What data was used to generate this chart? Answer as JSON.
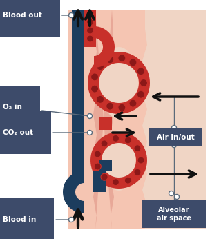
{
  "bg_outer": "#ffffff",
  "bg_alveolar": "#f5c5b2",
  "bg_air_space": "#f0d5c5",
  "wall_color": "#e8a898",
  "label_bg": "#3d4b6a",
  "label_fg": "#ffffff",
  "vessel_blue": "#1c3d5e",
  "rbc_bright": "#c8302a",
  "rbc_dark": "#8b1818",
  "connector_c": "#5a6a7a",
  "arrow_c": "#111111",
  "labels": {
    "blood_out": "Blood out",
    "blood_in": "Blood in",
    "o2_in": "O₂ in",
    "co2_out": "CO₂ out",
    "air_inout": "Air in/out",
    "alveolar": "Alveolar\nair space"
  }
}
